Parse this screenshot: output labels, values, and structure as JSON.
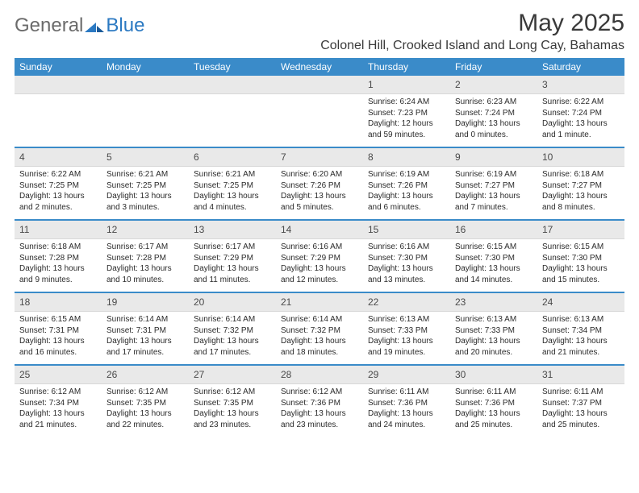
{
  "logo": {
    "general": "General",
    "blue": "Blue"
  },
  "title": "May 2025",
  "location": "Colonel Hill, Crooked Island and Long Cay, Bahamas",
  "colors": {
    "header_bg": "#3a8bc9",
    "cell_header_bg": "#e9e9e9",
    "text": "#2a2a2a"
  },
  "weekdays": [
    "Sunday",
    "Monday",
    "Tuesday",
    "Wednesday",
    "Thursday",
    "Friday",
    "Saturday"
  ],
  "weeks": [
    [
      {
        "n": "",
        "sr": "",
        "ss": "",
        "dl": ""
      },
      {
        "n": "",
        "sr": "",
        "ss": "",
        "dl": ""
      },
      {
        "n": "",
        "sr": "",
        "ss": "",
        "dl": ""
      },
      {
        "n": "",
        "sr": "",
        "ss": "",
        "dl": ""
      },
      {
        "n": "1",
        "sr": "Sunrise: 6:24 AM",
        "ss": "Sunset: 7:23 PM",
        "dl": "Daylight: 12 hours and 59 minutes."
      },
      {
        "n": "2",
        "sr": "Sunrise: 6:23 AM",
        "ss": "Sunset: 7:24 PM",
        "dl": "Daylight: 13 hours and 0 minutes."
      },
      {
        "n": "3",
        "sr": "Sunrise: 6:22 AM",
        "ss": "Sunset: 7:24 PM",
        "dl": "Daylight: 13 hours and 1 minute."
      }
    ],
    [
      {
        "n": "4",
        "sr": "Sunrise: 6:22 AM",
        "ss": "Sunset: 7:25 PM",
        "dl": "Daylight: 13 hours and 2 minutes."
      },
      {
        "n": "5",
        "sr": "Sunrise: 6:21 AM",
        "ss": "Sunset: 7:25 PM",
        "dl": "Daylight: 13 hours and 3 minutes."
      },
      {
        "n": "6",
        "sr": "Sunrise: 6:21 AM",
        "ss": "Sunset: 7:25 PM",
        "dl": "Daylight: 13 hours and 4 minutes."
      },
      {
        "n": "7",
        "sr": "Sunrise: 6:20 AM",
        "ss": "Sunset: 7:26 PM",
        "dl": "Daylight: 13 hours and 5 minutes."
      },
      {
        "n": "8",
        "sr": "Sunrise: 6:19 AM",
        "ss": "Sunset: 7:26 PM",
        "dl": "Daylight: 13 hours and 6 minutes."
      },
      {
        "n": "9",
        "sr": "Sunrise: 6:19 AM",
        "ss": "Sunset: 7:27 PM",
        "dl": "Daylight: 13 hours and 7 minutes."
      },
      {
        "n": "10",
        "sr": "Sunrise: 6:18 AM",
        "ss": "Sunset: 7:27 PM",
        "dl": "Daylight: 13 hours and 8 minutes."
      }
    ],
    [
      {
        "n": "11",
        "sr": "Sunrise: 6:18 AM",
        "ss": "Sunset: 7:28 PM",
        "dl": "Daylight: 13 hours and 9 minutes."
      },
      {
        "n": "12",
        "sr": "Sunrise: 6:17 AM",
        "ss": "Sunset: 7:28 PM",
        "dl": "Daylight: 13 hours and 10 minutes."
      },
      {
        "n": "13",
        "sr": "Sunrise: 6:17 AM",
        "ss": "Sunset: 7:29 PM",
        "dl": "Daylight: 13 hours and 11 minutes."
      },
      {
        "n": "14",
        "sr": "Sunrise: 6:16 AM",
        "ss": "Sunset: 7:29 PM",
        "dl": "Daylight: 13 hours and 12 minutes."
      },
      {
        "n": "15",
        "sr": "Sunrise: 6:16 AM",
        "ss": "Sunset: 7:30 PM",
        "dl": "Daylight: 13 hours and 13 minutes."
      },
      {
        "n": "16",
        "sr": "Sunrise: 6:15 AM",
        "ss": "Sunset: 7:30 PM",
        "dl": "Daylight: 13 hours and 14 minutes."
      },
      {
        "n": "17",
        "sr": "Sunrise: 6:15 AM",
        "ss": "Sunset: 7:30 PM",
        "dl": "Daylight: 13 hours and 15 minutes."
      }
    ],
    [
      {
        "n": "18",
        "sr": "Sunrise: 6:15 AM",
        "ss": "Sunset: 7:31 PM",
        "dl": "Daylight: 13 hours and 16 minutes."
      },
      {
        "n": "19",
        "sr": "Sunrise: 6:14 AM",
        "ss": "Sunset: 7:31 PM",
        "dl": "Daylight: 13 hours and 17 minutes."
      },
      {
        "n": "20",
        "sr": "Sunrise: 6:14 AM",
        "ss": "Sunset: 7:32 PM",
        "dl": "Daylight: 13 hours and 17 minutes."
      },
      {
        "n": "21",
        "sr": "Sunrise: 6:14 AM",
        "ss": "Sunset: 7:32 PM",
        "dl": "Daylight: 13 hours and 18 minutes."
      },
      {
        "n": "22",
        "sr": "Sunrise: 6:13 AM",
        "ss": "Sunset: 7:33 PM",
        "dl": "Daylight: 13 hours and 19 minutes."
      },
      {
        "n": "23",
        "sr": "Sunrise: 6:13 AM",
        "ss": "Sunset: 7:33 PM",
        "dl": "Daylight: 13 hours and 20 minutes."
      },
      {
        "n": "24",
        "sr": "Sunrise: 6:13 AM",
        "ss": "Sunset: 7:34 PM",
        "dl": "Daylight: 13 hours and 21 minutes."
      }
    ],
    [
      {
        "n": "25",
        "sr": "Sunrise: 6:12 AM",
        "ss": "Sunset: 7:34 PM",
        "dl": "Daylight: 13 hours and 21 minutes."
      },
      {
        "n": "26",
        "sr": "Sunrise: 6:12 AM",
        "ss": "Sunset: 7:35 PM",
        "dl": "Daylight: 13 hours and 22 minutes."
      },
      {
        "n": "27",
        "sr": "Sunrise: 6:12 AM",
        "ss": "Sunset: 7:35 PM",
        "dl": "Daylight: 13 hours and 23 minutes."
      },
      {
        "n": "28",
        "sr": "Sunrise: 6:12 AM",
        "ss": "Sunset: 7:36 PM",
        "dl": "Daylight: 13 hours and 23 minutes."
      },
      {
        "n": "29",
        "sr": "Sunrise: 6:11 AM",
        "ss": "Sunset: 7:36 PM",
        "dl": "Daylight: 13 hours and 24 minutes."
      },
      {
        "n": "30",
        "sr": "Sunrise: 6:11 AM",
        "ss": "Sunset: 7:36 PM",
        "dl": "Daylight: 13 hours and 25 minutes."
      },
      {
        "n": "31",
        "sr": "Sunrise: 6:11 AM",
        "ss": "Sunset: 7:37 PM",
        "dl": "Daylight: 13 hours and 25 minutes."
      }
    ]
  ]
}
